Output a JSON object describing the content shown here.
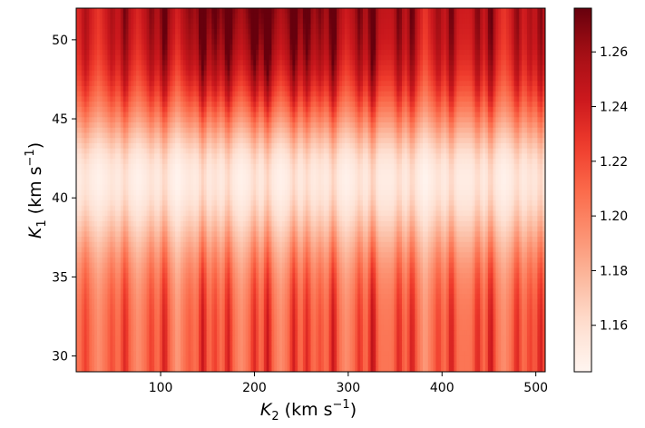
{
  "chart_data": {
    "type": "heatmap",
    "x": {
      "range": [
        10,
        510
      ],
      "ticks": [
        100,
        200,
        300,
        400,
        500
      ],
      "label_main": "K",
      "label_sub": "2",
      "label_units": " (km s",
      "label_exp": "−1",
      "label_close": ")"
    },
    "y": {
      "range": [
        29,
        52
      ],
      "ticks": [
        30,
        35,
        40,
        45,
        50
      ],
      "label_main": "K",
      "label_sub": "1",
      "label_units": " (km s",
      "label_exp": "−1",
      "label_close": ")"
    },
    "colorbar": {
      "range": [
        1.143,
        1.276
      ],
      "ticks": [
        "1.16",
        "1.18",
        "1.20",
        "1.22",
        "1.24",
        "1.26"
      ],
      "tick_values": [
        1.16,
        1.18,
        1.2,
        1.22,
        1.24,
        1.26
      ],
      "cmap": "Reds"
    },
    "field": {
      "y_center": 41.2,
      "y_width": 4.8,
      "center_value": 1.15,
      "top_value": 1.235,
      "bottom_value": 1.205,
      "top_darkening_x": [
        [
          10,
          0.0
        ],
        [
          120,
          0.02
        ],
        [
          200,
          0.035
        ],
        [
          280,
          0.02
        ],
        [
          360,
          0.01
        ],
        [
          460,
          0.005
        ],
        [
          510,
          0.0
        ]
      ]
    },
    "stripes": {
      "x": [
        20,
        34,
        48,
        62,
        76,
        90,
        104,
        118,
        131,
        145,
        158,
        172,
        186,
        200,
        214,
        228,
        242,
        256,
        270,
        284,
        298,
        312,
        326,
        340,
        354,
        368,
        382,
        396,
        410,
        424,
        438,
        452,
        466,
        480,
        494,
        505
      ],
      "amplitude": [
        0.02,
        -0.01,
        0.015,
        0.03,
        -0.01,
        0.02,
        0.035,
        -0.015,
        0.01,
        0.04,
        0.02,
        0.035,
        -0.01,
        0.03,
        0.04,
        -0.01,
        0.035,
        0.03,
        0.015,
        0.04,
        -0.01,
        0.025,
        0.045,
        0.0,
        0.03,
        0.035,
        -0.015,
        0.02,
        0.035,
        0.0,
        0.03,
        0.04,
        -0.01,
        0.03,
        0.02,
        0.035
      ]
    }
  }
}
